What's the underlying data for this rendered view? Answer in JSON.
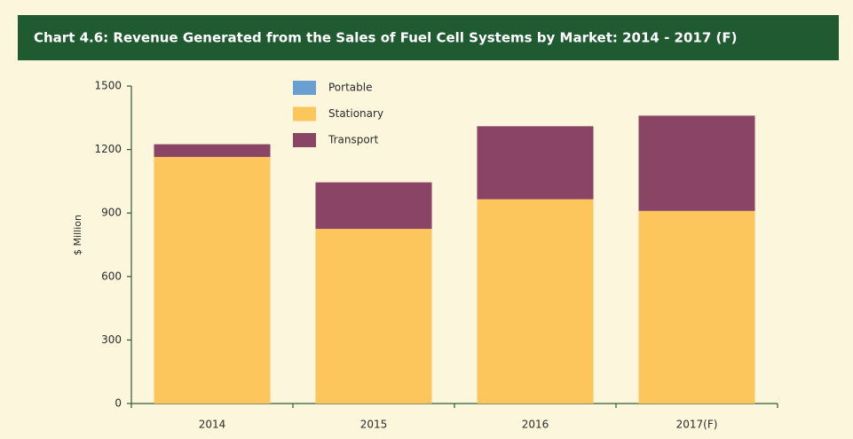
{
  "chart_data": {
    "type": "stacked_bar",
    "title": "Chart 4.6: Revenue Generated from the Sales of Fuel Cell Systems by Market: 2014 - 2017 (F)",
    "y_label": "$ Million",
    "categories": [
      "2014",
      "2015",
      "2016",
      "2017(F)"
    ],
    "series": [
      {
        "name": "Portable",
        "color": "#6a9fd4",
        "values": [
          0,
          0,
          0,
          0
        ]
      },
      {
        "name": "Stationary",
        "color": "#fdc65c",
        "values": [
          1165,
          825,
          965,
          910
        ]
      },
      {
        "name": "Transport",
        "color": "#8a4466",
        "values": [
          60,
          220,
          345,
          450
        ]
      }
    ],
    "ylim": [
      0,
      1500
    ],
    "yticks": [
      0,
      300,
      600,
      900,
      1200,
      1500
    ],
    "legend": "top-left"
  }
}
